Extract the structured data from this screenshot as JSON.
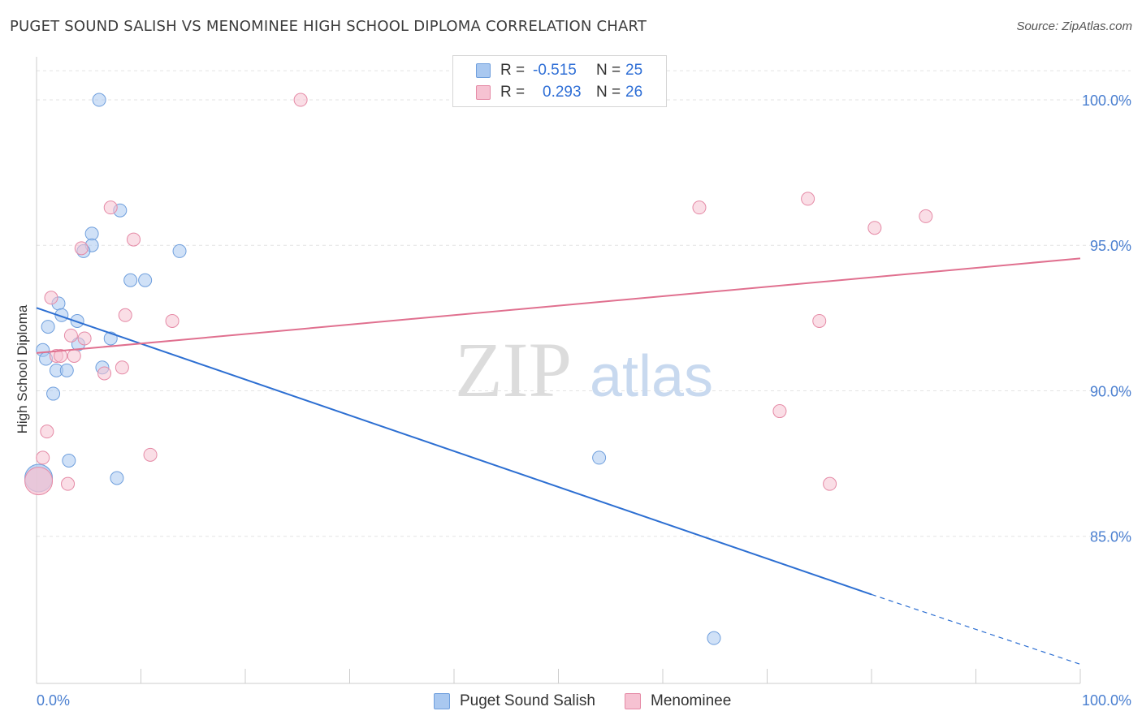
{
  "title": "PUGET SOUND SALISH VS MENOMINEE HIGH SCHOOL DIPLOMA CORRELATION CHART",
  "source": "Source: ZipAtlas.com",
  "watermark": {
    "zip": "ZIP",
    "atlas": "atlas"
  },
  "legend": {
    "rows": [
      {
        "r_label": "R =",
        "r_value": "-0.515",
        "n_label": "N =",
        "n_value": "25",
        "color": "#a9c8f0",
        "border": "#6f9fdd"
      },
      {
        "r_label": "R =",
        "r_value": "0.293",
        "n_label": "N =",
        "n_value": "26",
        "color": "#f6c2d2",
        "border": "#e58aa6"
      }
    ]
  },
  "bottom_legend": {
    "series_1": "Puget Sound Salish",
    "series_2": "Menominee"
  },
  "chart_data": {
    "type": "scatter",
    "title": "PUGET SOUND SALISH VS MENOMINEE HIGH SCHOOL DIPLOMA CORRELATION CHART",
    "ylabel": "High School Diploma",
    "xlabel": "",
    "xlim": [
      0,
      100
    ],
    "ylim": [
      80.5,
      101.2
    ],
    "x_tick_labels": [
      "0.0%",
      "100.0%"
    ],
    "y_ticks": [
      85,
      90,
      95,
      100
    ],
    "y_tick_labels": [
      "85.0%",
      "90.0%",
      "95.0%",
      "100.0%"
    ],
    "grid": true,
    "legend_position": "top-center",
    "series": [
      {
        "name": "Puget Sound Salish",
        "color": "#a9c8f0",
        "stroke": "#6f9fdd",
        "line_color": "#2d6fd2",
        "points": [
          [
            6.0,
            100.0
          ],
          [
            8.0,
            96.2
          ],
          [
            5.3,
            95.4
          ],
          [
            5.3,
            95.0
          ],
          [
            4.5,
            94.8
          ],
          [
            13.7,
            94.8
          ],
          [
            9.0,
            93.8
          ],
          [
            10.4,
            93.8
          ],
          [
            2.1,
            93.0
          ],
          [
            2.4,
            92.6
          ],
          [
            1.1,
            92.2
          ],
          [
            3.9,
            92.4
          ],
          [
            7.1,
            91.8
          ],
          [
            0.6,
            91.4
          ],
          [
            4.0,
            91.6
          ],
          [
            0.9,
            91.1
          ],
          [
            1.9,
            90.7
          ],
          [
            2.9,
            90.7
          ],
          [
            6.3,
            90.8
          ],
          [
            1.6,
            89.9
          ],
          [
            3.1,
            87.6
          ],
          [
            7.7,
            87.0
          ],
          [
            53.9,
            87.7
          ],
          [
            64.9,
            81.5
          ],
          [
            0.2,
            87.0
          ]
        ],
        "trend": {
          "x0": 0,
          "y0": 92.85,
          "x1": 80,
          "y1": 83.0,
          "dashed_to_x": 100,
          "dashed_to_y": 80.6
        }
      },
      {
        "name": "Menominee",
        "color": "#f6c2d2",
        "stroke": "#e58aa6",
        "line_color": "#e0708f",
        "points": [
          [
            25.3,
            100.0
          ],
          [
            7.1,
            96.3
          ],
          [
            63.5,
            96.3
          ],
          [
            73.9,
            96.6
          ],
          [
            80.3,
            95.6
          ],
          [
            85.2,
            96.0
          ],
          [
            9.3,
            95.2
          ],
          [
            4.3,
            94.9
          ],
          [
            1.4,
            93.2
          ],
          [
            8.5,
            92.6
          ],
          [
            13.0,
            92.4
          ],
          [
            75.0,
            92.4
          ],
          [
            3.3,
            91.9
          ],
          [
            4.6,
            91.8
          ],
          [
            1.9,
            91.2
          ],
          [
            2.3,
            91.2
          ],
          [
            3.6,
            91.2
          ],
          [
            8.2,
            90.8
          ],
          [
            6.5,
            90.6
          ],
          [
            1.0,
            88.6
          ],
          [
            71.2,
            89.3
          ],
          [
            10.9,
            87.8
          ],
          [
            0.6,
            87.7
          ],
          [
            3.0,
            86.8
          ],
          [
            76.0,
            86.8
          ],
          [
            0.2,
            86.9
          ]
        ],
        "trend": {
          "x0": 0,
          "y0": 91.3,
          "x1": 100,
          "y1": 94.55
        }
      }
    ]
  }
}
